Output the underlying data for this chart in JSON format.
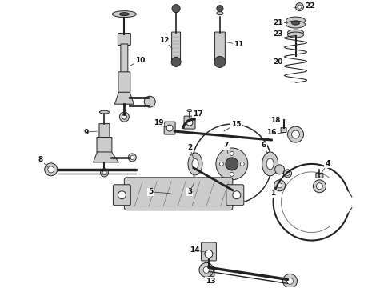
{
  "bg_color": "#ffffff",
  "line_color": "#222222",
  "figw": 4.9,
  "figh": 3.6,
  "dpi": 100
}
